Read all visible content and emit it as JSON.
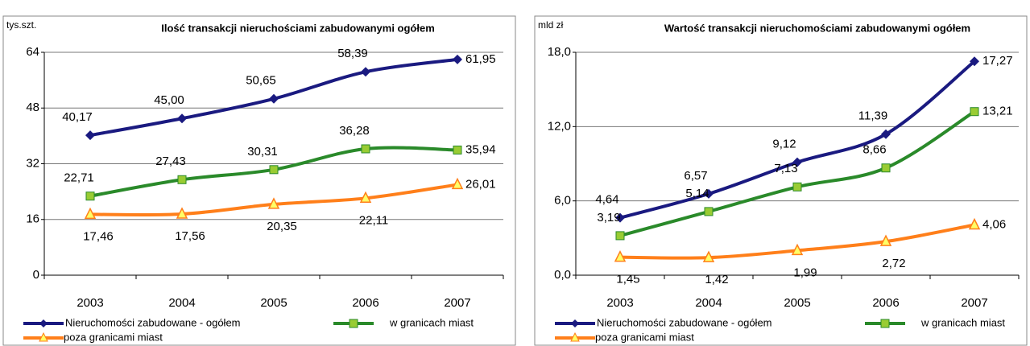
{
  "chart_data": [
    {
      "type": "line",
      "title": "Ilość transakcji nieruchościami zabudowanymi ogółem",
      "y_label": "tys.szt.",
      "categories": [
        "2003",
        "2004",
        "2005",
        "2006",
        "2007"
      ],
      "ylim": [
        0,
        64
      ],
      "yticks": [
        0,
        16,
        32,
        48,
        64
      ],
      "grid": true,
      "series": [
        {
          "name": "Nieruchomości zabudowane - ogółem",
          "color": "#1a1a80",
          "marker": "diamond",
          "values": [
            40.17,
            45.0,
            50.65,
            58.39,
            61.95
          ],
          "value_labels": [
            "40,17",
            "45,00",
            "50,65",
            "58,39",
            "61,95"
          ]
        },
        {
          "name": "w granicach miast",
          "color": "#2a8a2a",
          "marker": "square",
          "values": [
            22.71,
            27.43,
            30.31,
            36.28,
            35.94
          ],
          "value_labels": [
            "22,71",
            "27,43",
            "30,31",
            "36,28",
            "35,94"
          ]
        },
        {
          "name": "poza granicami miast",
          "color": "#ff7f1a",
          "marker": "triangle",
          "values": [
            17.46,
            17.56,
            20.35,
            22.11,
            26.01
          ],
          "value_labels": [
            "17,46",
            "17,56",
            "20,35",
            "22,11",
            "26,01"
          ]
        }
      ]
    },
    {
      "type": "line",
      "title": "Wartość transakcji nieruchomościami zabudowanymi ogółem",
      "y_label": "mld zł",
      "categories": [
        "2003",
        "2004",
        "2005",
        "2006",
        "2007"
      ],
      "ylim": [
        0,
        18
      ],
      "yticks": [
        {
          "value": 0,
          "label": "0,0"
        },
        {
          "value": 6,
          "label": "6,0"
        },
        {
          "value": 12,
          "label": "12,0"
        },
        {
          "value": 18,
          "label": "18,0"
        }
      ],
      "grid": true,
      "series": [
        {
          "name": "Nieruchomości zabudowane - ogółem",
          "color": "#1a1a80",
          "marker": "diamond",
          "values": [
            4.64,
            6.57,
            9.12,
            11.39,
            17.27
          ],
          "value_labels": [
            "4,64",
            "6,57",
            "9,12",
            "11,39",
            "17,27"
          ]
        },
        {
          "name": "w granicach miast",
          "color": "#2a8a2a",
          "marker": "square",
          "values": [
            3.19,
            5.14,
            7.13,
            8.66,
            13.21
          ],
          "value_labels": [
            "3,19",
            "5,14",
            "7,13",
            "8,66",
            "13,21"
          ]
        },
        {
          "name": "poza granicami miast",
          "color": "#ff7f1a",
          "marker": "triangle",
          "values": [
            1.45,
            1.42,
            1.99,
            2.72,
            4.06
          ],
          "value_labels": [
            "1,45",
            "1,42",
            "1,99",
            "2,72",
            "4,06"
          ]
        }
      ]
    }
  ]
}
